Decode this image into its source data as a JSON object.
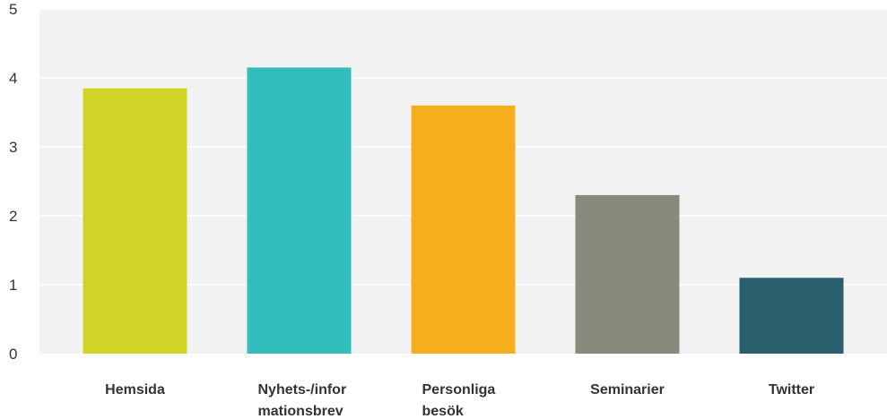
{
  "chart_data": {
    "type": "bar",
    "categories": [
      [
        "Hemsida"
      ],
      [
        "Nyhets-/infor",
        "mationsbrev"
      ],
      [
        "Personliga",
        "besök"
      ],
      [
        "Seminarier"
      ],
      [
        "Twitter"
      ]
    ],
    "values": [
      3.85,
      4.15,
      3.6,
      2.3,
      1.1
    ],
    "colors": [
      "#d0d426",
      "#33bdbd",
      "#f5ae1e",
      "#898a7b",
      "#2c5f6d"
    ],
    "ylim": [
      0,
      5
    ],
    "yticks": [
      "0",
      "1",
      "2",
      "3",
      "4",
      "5"
    ],
    "grid": true,
    "background": "#f2f2f2"
  }
}
